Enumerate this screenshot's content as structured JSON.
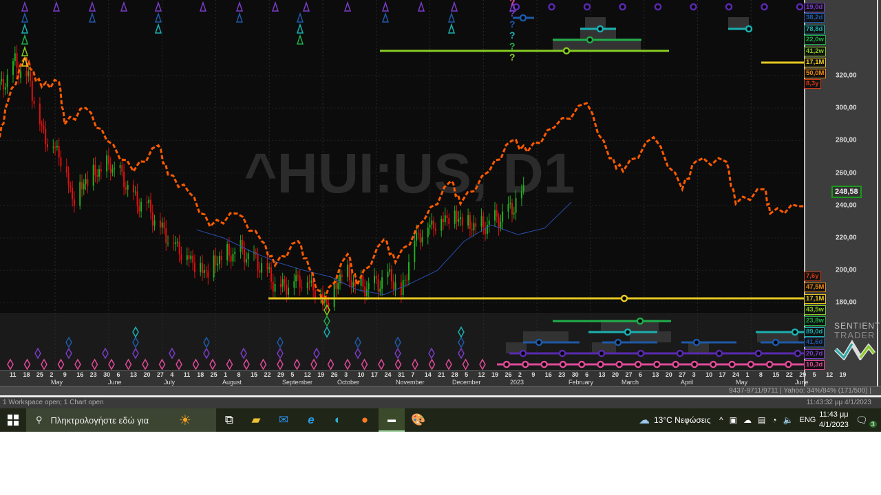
{
  "chart": {
    "watermark": "^HUI:US, D1",
    "current_price": "248,58",
    "price_labels": [
      "320,00",
      "300,00",
      "280,00",
      "260,00",
      "240,00",
      "220,00",
      "200,00",
      "180,00"
    ],
    "price_values": [
      320,
      300,
      280,
      260,
      240,
      220,
      200,
      180
    ],
    "cycle_labels_top": [
      {
        "text": "19,0d",
        "color": "#7a3cc8"
      },
      {
        "text": "38,2d",
        "color": "#1e5aa8"
      },
      {
        "text": "78,8d",
        "color": "#1ab0b0"
      },
      {
        "text": "22,0w",
        "color": "#1fae4a"
      },
      {
        "text": "41,2w",
        "color": "#86cc22"
      },
      {
        "text": "17,1M",
        "color": "#e6c820"
      },
      {
        "text": "50,0M",
        "color": "#e88a10"
      },
      {
        "text": "8,3y",
        "color": "#d83a12"
      }
    ],
    "cycle_labels_bottom": [
      {
        "text": "7,6y",
        "color": "#d83a12"
      },
      {
        "text": "47,5M",
        "color": "#e88a10"
      },
      {
        "text": "17,1M",
        "color": "#e6c820"
      },
      {
        "text": "43,5w",
        "color": "#86cc22"
      },
      {
        "text": "23,8w",
        "color": "#1fae4a"
      },
      {
        "text": "89,0d",
        "color": "#1ab0b0"
      },
      {
        "text": "41,6d",
        "color": "#1e5aa8"
      },
      {
        "text": "20,7d",
        "color": "#7a3cc8"
      },
      {
        "text": "10,3d",
        "color": "#e04a98"
      }
    ],
    "question_marks": [
      "?",
      "?",
      "?",
      "?",
      "?",
      "?"
    ],
    "brand_line1": "SENTIENT",
    "brand_line2": "TRADER",
    "colors": {
      "up": "#22b022",
      "down": "#e01010",
      "projection": "#ff5a00",
      "overlay_blue": "#2a4fb0",
      "overlay_purple": "#5a2ab0"
    }
  },
  "chart_data": {
    "type": "line",
    "start_date": "2022-04-11",
    "price_closes": [
      [
        "2022-04-04",
        311
      ],
      [
        "2022-04-12",
        328
      ],
      [
        "2022-04-20",
        316
      ],
      [
        "2022-04-26",
        286
      ],
      [
        "2022-05-07",
        269
      ],
      [
        "2022-05-12",
        244
      ],
      [
        "2022-05-18",
        254
      ],
      [
        "2022-05-25",
        261
      ],
      [
        "2022-06-01",
        265
      ],
      [
        "2022-06-08",
        256
      ],
      [
        "2022-06-13",
        244
      ],
      [
        "2022-06-20",
        240
      ],
      [
        "2022-06-27",
        227
      ],
      [
        "2022-07-05",
        216
      ],
      [
        "2022-07-12",
        208
      ],
      [
        "2022-07-21",
        199
      ],
      [
        "2022-07-28",
        208
      ],
      [
        "2022-08-08",
        212
      ],
      [
        "2022-08-19",
        203
      ],
      [
        "2022-08-28",
        189
      ],
      [
        "2022-09-06",
        195
      ],
      [
        "2022-09-13",
        193
      ],
      [
        "2022-09-22",
        180
      ],
      [
        "2022-10-01",
        201
      ],
      [
        "2022-10-08",
        189
      ],
      [
        "2022-10-17",
        191
      ],
      [
        "2022-10-26",
        197
      ],
      [
        "2022-10-31",
        184
      ],
      [
        "2022-11-06",
        218
      ],
      [
        "2022-11-13",
        227
      ],
      [
        "2022-11-20",
        231
      ],
      [
        "2022-11-27",
        235
      ],
      [
        "2022-12-05",
        229
      ],
      [
        "2022-12-12",
        227
      ],
      [
        "2022-12-19",
        231
      ],
      [
        "2022-12-25",
        235
      ],
      [
        "2023-01-03",
        248.58
      ]
    ],
    "projection": [
      [
        "2022-04-04",
        282
      ],
      [
        "2022-04-08",
        303
      ],
      [
        "2022-04-17",
        331
      ],
      [
        "2022-04-20",
        324
      ],
      [
        "2022-04-26",
        313
      ],
      [
        "2022-05-05",
        316
      ],
      [
        "2022-05-08",
        290
      ],
      [
        "2022-05-19",
        300
      ],
      [
        "2022-05-30",
        280
      ],
      [
        "2022-06-13",
        261
      ],
      [
        "2022-06-26",
        277
      ],
      [
        "2022-07-01",
        259
      ],
      [
        "2022-07-12",
        248
      ],
      [
        "2022-07-23",
        227
      ],
      [
        "2022-08-06",
        235
      ],
      [
        "2022-08-19",
        218
      ],
      [
        "2022-08-26",
        203
      ],
      [
        "2022-09-07",
        218
      ],
      [
        "2022-09-13",
        201
      ],
      [
        "2022-09-20",
        180
      ],
      [
        "2022-10-03",
        210
      ],
      [
        "2022-10-08",
        191
      ],
      [
        "2022-10-22",
        219
      ],
      [
        "2022-10-28",
        205
      ],
      [
        "2022-11-12",
        231
      ],
      [
        "2022-11-26",
        255
      ],
      [
        "2022-12-01",
        241
      ],
      [
        "2022-12-16",
        261
      ],
      [
        "2022-12-28",
        280
      ],
      [
        "2023-01-05",
        273
      ],
      [
        "2023-01-19",
        288
      ],
      [
        "2023-02-05",
        303
      ],
      [
        "2023-02-17",
        269
      ],
      [
        "2023-02-24",
        261
      ],
      [
        "2023-03-12",
        282
      ],
      [
        "2023-03-27",
        250
      ],
      [
        "2023-04-03",
        267
      ],
      [
        "2023-04-19",
        267
      ],
      [
        "2023-04-24",
        241
      ],
      [
        "2023-05-09",
        250
      ],
      [
        "2023-05-12",
        235
      ],
      [
        "2023-05-27",
        239.5
      ],
      [
        "2023-06-08",
        231
      ]
    ],
    "overlay": [
      [
        "2022-07-16",
        225
      ],
      [
        "2022-07-30",
        220
      ],
      [
        "2022-08-13",
        212
      ],
      [
        "2022-08-27",
        205
      ],
      [
        "2022-09-10",
        200
      ],
      [
        "2022-09-24",
        196
      ],
      [
        "2022-10-08",
        188
      ],
      [
        "2022-10-22",
        185
      ],
      [
        "2022-11-05",
        192
      ],
      [
        "2022-11-19",
        200
      ],
      [
        "2022-12-03",
        218
      ],
      [
        "2022-12-17",
        228
      ],
      [
        "2022-12-31",
        222
      ],
      [
        "2023-01-14",
        226
      ],
      [
        "2023-01-28",
        242
      ]
    ],
    "ylim": [
      170,
      335
    ]
  },
  "date_axis": {
    "weeks": [
      "11",
      "18",
      "25",
      "2",
      "9",
      "16",
      "23",
      "30",
      "6",
      "13",
      "20",
      "27",
      "4",
      "11",
      "18",
      "25",
      "1",
      "8",
      "15",
      "22",
      "29",
      "5",
      "12",
      "19",
      "26",
      "3",
      "10",
      "17",
      "24",
      "31",
      "7",
      "14",
      "21",
      "28",
      "5",
      "12",
      "19",
      "26",
      "2",
      "9",
      "16",
      "23",
      "30",
      "6",
      "13",
      "20",
      "27",
      "6",
      "13",
      "20",
      "27",
      "3",
      "10",
      "17",
      "24",
      "1",
      "8",
      "15",
      "22",
      "29",
      "5",
      "12",
      "19"
    ],
    "months": [
      "May",
      "June",
      "July",
      "August",
      "September",
      "October",
      "November",
      "December",
      "2023",
      "February",
      "March",
      "April",
      "May",
      "June"
    ]
  },
  "status": {
    "data_info": "9437-9711/9711  | Yahoo: 34%/84% (171/500) |",
    "workspace": "1 Workspace open; 1 Chart open",
    "timestamp": "11:43:32 μμ  4/1/2023"
  },
  "taskbar": {
    "search_placeholder": "Πληκτρολογήστε εδώ για",
    "weather": "13°C  Νεφώσεις",
    "language": "ENG",
    "time": "11:43 μμ",
    "date": "4/1/2023",
    "notifications": "3"
  }
}
